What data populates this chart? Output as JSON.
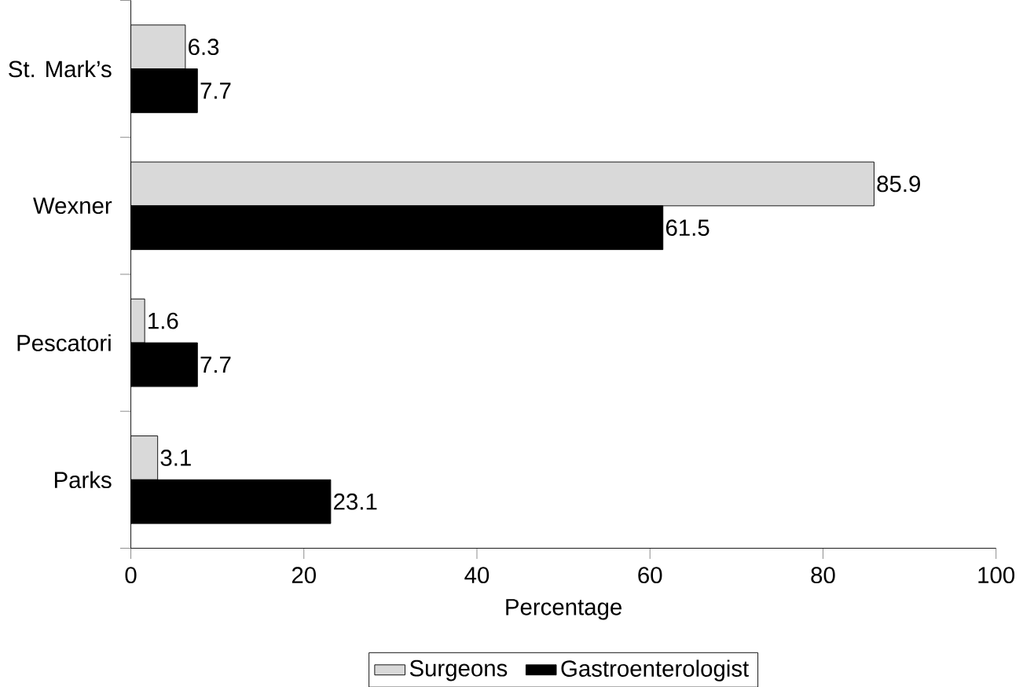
{
  "chart_data": {
    "type": "bar",
    "orientation": "horizontal",
    "xlabel": "Percentage",
    "categories": [
      "St. Mark’s",
      "Wexner",
      "Pescatori",
      "Parks"
    ],
    "series": [
      {
        "name": "Surgeons",
        "color": "#d9d9d9",
        "values": [
          6.3,
          85.9,
          1.6,
          3.1
        ]
      },
      {
        "name": "Gastroenterologist",
        "color": "#000000",
        "values": [
          7.7,
          61.5,
          7.7,
          23.1
        ]
      }
    ],
    "xlim": [
      0,
      100
    ],
    "xticks": [
      0,
      20,
      40,
      60,
      80,
      100
    ],
    "data_labels": true,
    "legend": "bottom",
    "grid": false
  }
}
